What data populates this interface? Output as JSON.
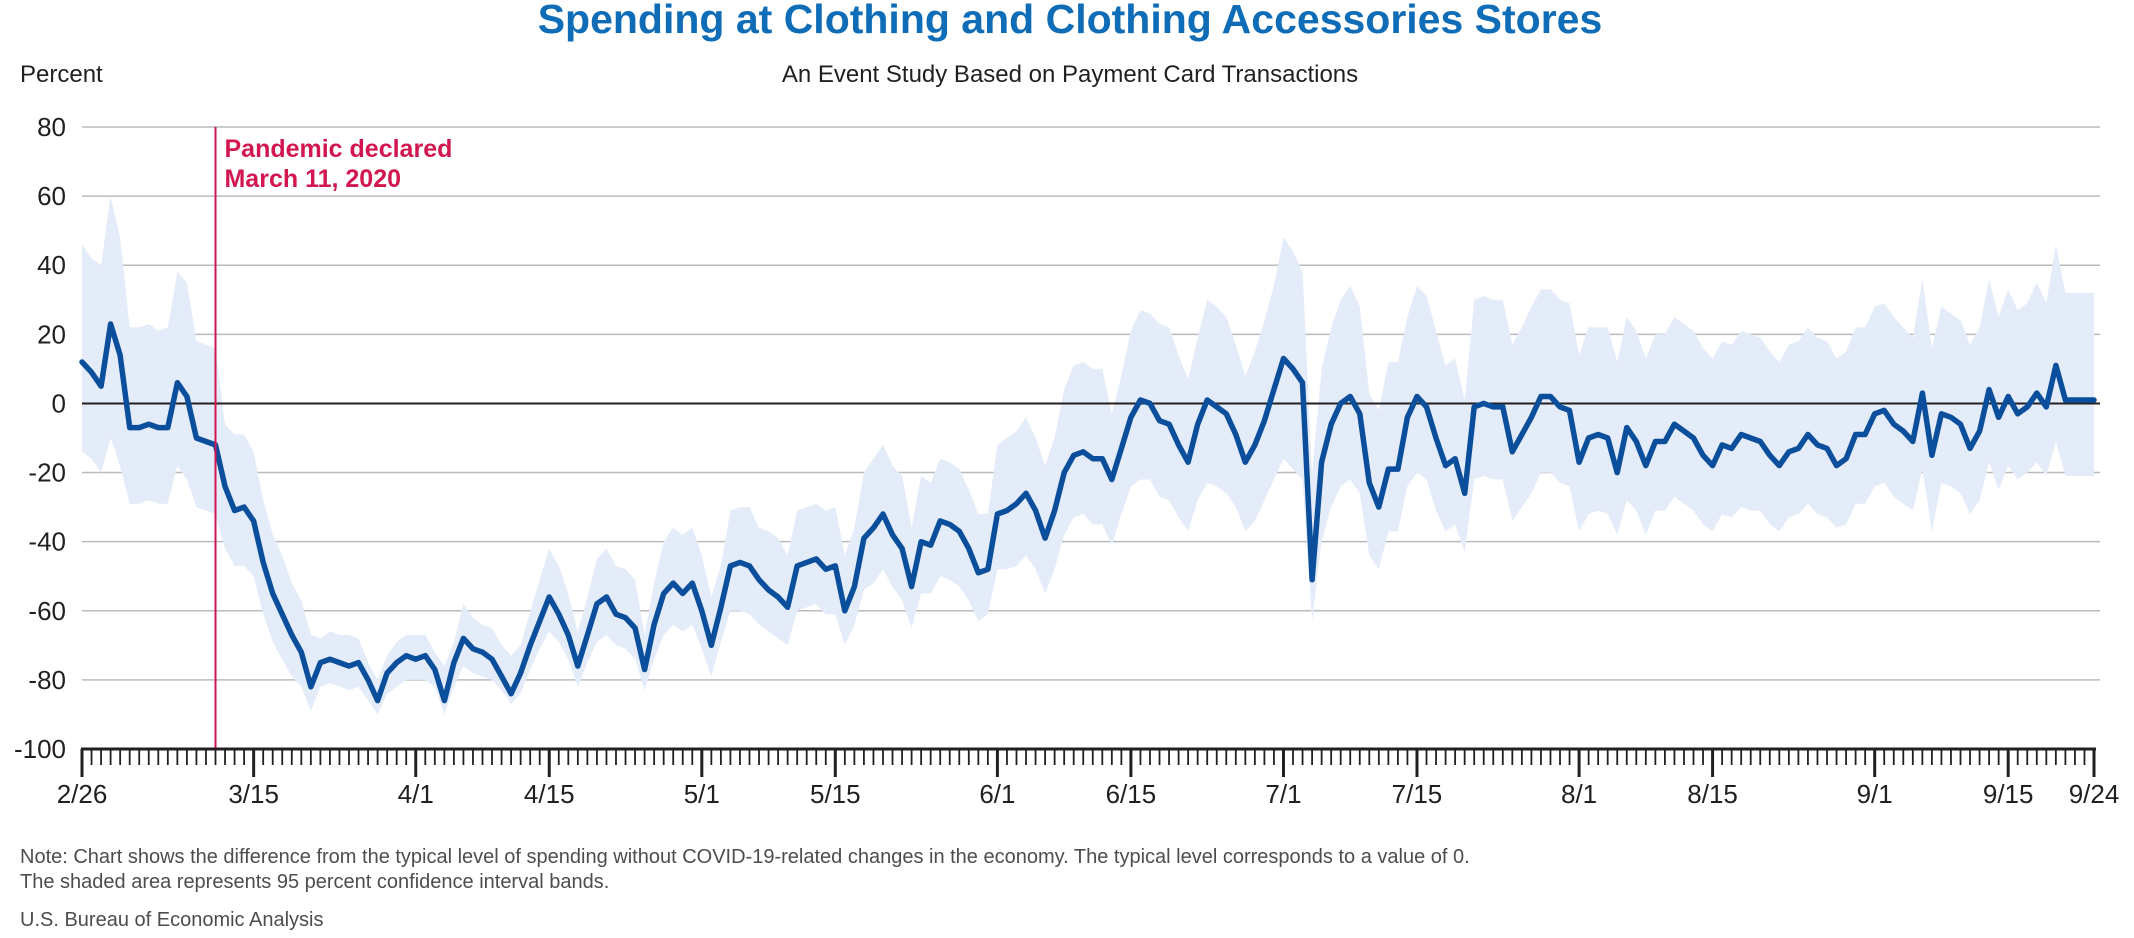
{
  "colors": {
    "title": "#0f6cb6",
    "line": "#0b4f9c",
    "band": "#e3ecf8",
    "grid": "#b9bbbe",
    "zero": "#231f20",
    "annotation": "#d2164f",
    "text": "#231f20",
    "note": "#4d4d4f"
  },
  "header": {
    "title": "Spending at Clothing and Clothing Accessories Stores",
    "subtitle": "An Event Study Based on Payment Card Transactions",
    "ylabel": "Percent"
  },
  "annotation": {
    "line1": "Pandemic declared",
    "line2": "March 11, 2020",
    "date": "2020-03-11"
  },
  "footer": {
    "note1": "Note: Chart shows the difference from the typical level of spending without COVID-19-related changes in the economy. The typical level corresponds to a value of 0.",
    "note2": "The shaded area represents 95 percent confidence interval bands.",
    "source": "U.S. Bureau of Economic Analysis"
  },
  "chart_data": {
    "type": "line",
    "title": "Spending at Clothing and Clothing Accessories Stores",
    "subtitle": "An Event Study Based on Payment Card Transactions",
    "ylabel": "Percent",
    "xlabel": "",
    "ylim": [
      -100,
      80
    ],
    "yticks": [
      80,
      60,
      40,
      20,
      0,
      -20,
      -40,
      -60,
      -80,
      -100
    ],
    "grid": true,
    "x_start": "2020-02-26",
    "x_end": "2020-09-24",
    "xtick_labels": [
      {
        "date": "2020-02-26",
        "label": "2/26"
      },
      {
        "date": "2020-03-15",
        "label": "3/15"
      },
      {
        "date": "2020-04-01",
        "label": "4/1"
      },
      {
        "date": "2020-04-15",
        "label": "4/15"
      },
      {
        "date": "2020-05-01",
        "label": "5/1"
      },
      {
        "date": "2020-05-15",
        "label": "5/15"
      },
      {
        "date": "2020-06-01",
        "label": "6/1"
      },
      {
        "date": "2020-06-15",
        "label": "6/15"
      },
      {
        "date": "2020-07-01",
        "label": "7/1"
      },
      {
        "date": "2020-07-15",
        "label": "7/15"
      },
      {
        "date": "2020-08-01",
        "label": "8/1"
      },
      {
        "date": "2020-08-15",
        "label": "8/15"
      },
      {
        "date": "2020-09-01",
        "label": "9/1"
      },
      {
        "date": "2020-09-15",
        "label": "9/15"
      },
      {
        "date": "2020-09-24",
        "label": "9/24"
      }
    ],
    "series": [
      {
        "values": [
          12,
          9,
          5,
          23,
          14,
          -7,
          -7,
          -6,
          -7,
          -7,
          6,
          2,
          -10,
          -11,
          -12,
          -24,
          -31,
          -30,
          -34,
          -46,
          -55,
          -61,
          -67,
          -72,
          -82,
          -75,
          -74,
          -75,
          -76,
          -75,
          -80,
          -86,
          -78,
          -75,
          -73,
          -74,
          -73,
          -77,
          -86,
          -75,
          -68,
          -71,
          -72,
          -74,
          -79,
          -84,
          -78,
          -70,
          -63,
          -56,
          -61,
          -67,
          -76,
          -67,
          -58,
          -56,
          -61,
          -62,
          -65,
          -77,
          -64,
          -55,
          -52,
          -55,
          -52,
          -60,
          -70,
          -59,
          -47,
          -46,
          -47,
          -51,
          -54,
          -56,
          -59,
          -47,
          -46,
          -45,
          -48,
          -47,
          -60,
          -53,
          -39,
          -36,
          -32,
          -38,
          -42,
          -53,
          -40,
          -41,
          -34,
          -35,
          -37,
          -42,
          -49,
          -48,
          -32,
          -31,
          -29,
          -26,
          -31,
          -39,
          -31,
          -20,
          -15,
          -14,
          -16,
          -16,
          -22,
          -13,
          -4,
          1,
          0,
          -5,
          -6,
          -12,
          -17,
          -6,
          1,
          -1,
          -3,
          -9,
          -17,
          -12,
          -5,
          4,
          13,
          10,
          6,
          -51,
          -17,
          -6,
          0,
          2,
          -3,
          -23,
          -30,
          -19,
          -19,
          -4,
          2,
          -1,
          -10,
          -18,
          -16,
          -26,
          -1,
          0,
          -1,
          -1,
          -14,
          -9,
          -4,
          2,
          2,
          -1,
          -2,
          -17,
          -10,
          -9,
          -10,
          -20,
          -7,
          -11,
          -18,
          -11,
          -11,
          -6,
          -8,
          -10,
          -15,
          -18,
          -12,
          -13,
          -9,
          -10,
          -11,
          -15,
          -18,
          -14,
          -13,
          -9,
          -12,
          -13,
          -18,
          -16,
          -9,
          -9,
          -3,
          -2,
          -6,
          -8,
          -11,
          3,
          -15,
          -3,
          -4,
          -6,
          -13,
          -8,
          4,
          -4,
          2,
          -3,
          -1,
          3,
          -1,
          11,
          1,
          1,
          1,
          1
        ]
      },
      {
        "name": "95% CI upper",
        "values": [
          46,
          42,
          40,
          60,
          48,
          22,
          22,
          23,
          21,
          22,
          38,
          35,
          18,
          17,
          16,
          -6,
          -9,
          -9,
          -14,
          -28,
          -38,
          -44,
          -52,
          -57,
          -67,
          -68,
          -66,
          -67,
          -67,
          -68,
          -75,
          -80,
          -73,
          -69,
          -67,
          -67,
          -67,
          -72,
          -76,
          -69,
          -58,
          -62,
          -64,
          -65,
          -70,
          -73,
          -70,
          -60,
          -51,
          -42,
          -47,
          -55,
          -66,
          -56,
          -45,
          -42,
          -47,
          -48,
          -51,
          -67,
          -52,
          -40,
          -36,
          -38,
          -36,
          -44,
          -56,
          -47,
          -31,
          -30,
          -30,
          -36,
          -37,
          -39,
          -44,
          -31,
          -30,
          -29,
          -31,
          -30,
          -44,
          -36,
          -20,
          -16,
          -12,
          -18,
          -21,
          -36,
          -21,
          -23,
          -16,
          -17,
          -19,
          -25,
          -32,
          -32,
          -12,
          -10,
          -8,
          -4,
          -10,
          -18,
          -10,
          4,
          11,
          12,
          10,
          10,
          -3,
          8,
          21,
          27,
          26,
          23,
          22,
          14,
          7,
          19,
          30,
          28,
          25,
          17,
          8,
          15,
          24,
          34,
          48,
          44,
          38,
          -20,
          10,
          22,
          30,
          34,
          28,
          3,
          -2,
          12,
          12,
          25,
          34,
          31,
          21,
          11,
          13,
          1,
          30,
          31,
          30,
          30,
          17,
          22,
          28,
          33,
          33,
          30,
          29,
          14,
          22,
          22,
          22,
          12,
          25,
          21,
          13,
          20,
          20,
          25,
          23,
          21,
          16,
          13,
          18,
          17,
          21,
          20,
          19,
          15,
          12,
          17,
          18,
          22,
          19,
          18,
          13,
          15,
          22,
          22,
          28,
          29,
          25,
          22,
          19,
          36,
          16,
          28,
          26,
          24,
          17,
          22,
          36,
          25,
          33,
          27,
          29,
          35,
          29,
          46,
          32,
          32,
          32,
          32
        ]
      },
      {
        "name": "95% CI lower",
        "values": [
          -14,
          -16,
          -20,
          -10,
          -18,
          -29,
          -29,
          -28,
          -29,
          -29,
          -18,
          -22,
          -30,
          -31,
          -32,
          -42,
          -47,
          -47,
          -50,
          -61,
          -69,
          -74,
          -79,
          -82,
          -89,
          -82,
          -81,
          -82,
          -83,
          -82,
          -86,
          -90,
          -84,
          -82,
          -80,
          -80,
          -80,
          -82,
          -90,
          -82,
          -76,
          -78,
          -79,
          -80,
          -83,
          -87,
          -84,
          -77,
          -71,
          -66,
          -69,
          -74,
          -82,
          -75,
          -69,
          -67,
          -70,
          -71,
          -74,
          -83,
          -74,
          -67,
          -64,
          -66,
          -64,
          -71,
          -79,
          -69,
          -60,
          -60,
          -61,
          -64,
          -66,
          -68,
          -70,
          -60,
          -59,
          -58,
          -61,
          -61,
          -70,
          -64,
          -54,
          -52,
          -48,
          -53,
          -57,
          -65,
          -55,
          -55,
          -50,
          -51,
          -53,
          -57,
          -63,
          -61,
          -48,
          -48,
          -47,
          -44,
          -48,
          -55,
          -48,
          -38,
          -33,
          -32,
          -35,
          -35,
          -41,
          -32,
          -24,
          -22,
          -22,
          -27,
          -28,
          -33,
          -37,
          -28,
          -23,
          -24,
          -26,
          -30,
          -37,
          -34,
          -28,
          -22,
          -16,
          -19,
          -22,
          -63,
          -40,
          -30,
          -24,
          -22,
          -26,
          -44,
          -48,
          -37,
          -37,
          -24,
          -20,
          -22,
          -31,
          -37,
          -35,
          -43,
          -22,
          -21,
          -22,
          -22,
          -34,
          -30,
          -26,
          -20,
          -20,
          -23,
          -24,
          -37,
          -32,
          -31,
          -32,
          -38,
          -28,
          -31,
          -38,
          -31,
          -31,
          -27,
          -29,
          -31,
          -35,
          -37,
          -32,
          -33,
          -30,
          -31,
          -31,
          -35,
          -37,
          -33,
          -32,
          -29,
          -32,
          -33,
          -36,
          -35,
          -29,
          -29,
          -24,
          -23,
          -27,
          -29,
          -31,
          -19,
          -37,
          -23,
          -24,
          -26,
          -32,
          -28,
          -17,
          -25,
          -18,
          -22,
          -20,
          -17,
          -21,
          -11,
          -21,
          -21,
          -21,
          -21
        ]
      }
    ]
  }
}
